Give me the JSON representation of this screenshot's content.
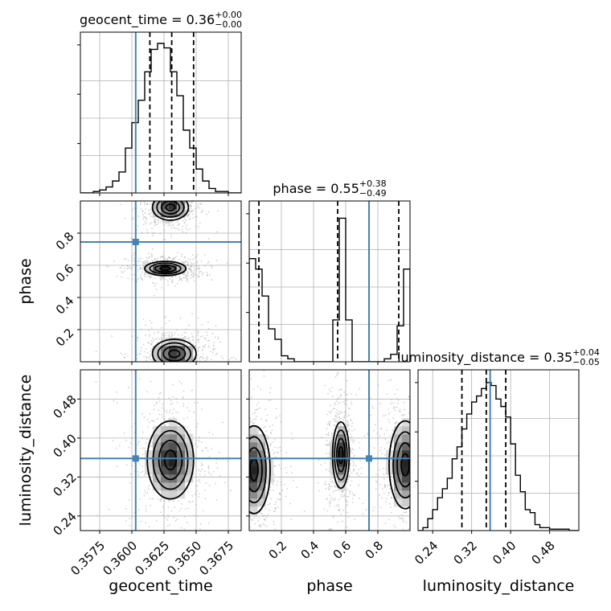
{
  "chart_data": {
    "type": "corner",
    "parameters": [
      "geocent_time",
      "phase",
      "luminosity_distance"
    ],
    "axis_labels": {
      "geocent_time": "geocent_time",
      "phase": "phase",
      "luminosity_distance": "luminosity_distance"
    },
    "ranges": {
      "geocent_time": [
        0.356,
        0.3685
      ],
      "phase": [
        0.0,
        1.0
      ],
      "luminosity_distance": [
        0.21,
        0.54
      ]
    },
    "ticks": {
      "geocent_time": {
        "values": [
          0.3575,
          0.36,
          0.3625,
          0.365,
          0.3675
        ],
        "labels": [
          "0.3575",
          "0.3600",
          "0.3625",
          "0.3650",
          "0.3675"
        ]
      },
      "phase": {
        "values": [
          0.2,
          0.4,
          0.6,
          0.8
        ],
        "labels": [
          "0.2",
          "0.4",
          "0.6",
          "0.8"
        ]
      },
      "luminosity_distance": {
        "values": [
          0.24,
          0.32,
          0.4,
          0.48
        ],
        "labels": [
          "0.24",
          "0.32",
          "0.40",
          "0.48"
        ]
      }
    },
    "truths": {
      "geocent_time": 0.3603,
      "phase": 0.745,
      "luminosity_distance": 0.358
    },
    "quantiles": {
      "geocent_time": [
        0.3614,
        0.3631,
        0.3648
      ],
      "phase": [
        0.06,
        0.55,
        0.93
      ],
      "luminosity_distance": [
        0.3,
        0.35,
        0.39
      ]
    },
    "titles": {
      "geocent_time": {
        "name": "geocent_time",
        "value": "0.36",
        "plus": "+0.00",
        "minus": "−0.00"
      },
      "phase": {
        "name": "phase",
        "value": "0.55",
        "plus": "+0.38",
        "minus": "−0.49"
      },
      "luminosity_distance": {
        "name": "luminosity_distance",
        "value": "0.35",
        "plus": "+0.04",
        "minus": "−0.05"
      }
    },
    "histograms": {
      "geocent_time": {
        "edges": [
          0.356,
          0.3565,
          0.357,
          0.3575,
          0.358,
          0.3585,
          0.359,
          0.3595,
          0.36,
          0.3605,
          0.361,
          0.3615,
          0.362,
          0.3625,
          0.363,
          0.3635,
          0.364,
          0.3645,
          0.365,
          0.3655,
          0.366,
          0.3665,
          0.367,
          0.3675,
          0.368,
          0.3685
        ],
        "counts": [
          0,
          0,
          0.01,
          0.02,
          0.04,
          0.08,
          0.14,
          0.3,
          0.47,
          0.62,
          0.81,
          0.96,
          1.0,
          0.97,
          0.81,
          0.65,
          0.42,
          0.3,
          0.16,
          0.08,
          0.03,
          0.01,
          0.01,
          0,
          0
        ]
      },
      "phase": {
        "edges": [
          0.0,
          0.04,
          0.08,
          0.12,
          0.16,
          0.2,
          0.24,
          0.28,
          0.32,
          0.36,
          0.4,
          0.44,
          0.48,
          0.52,
          0.56,
          0.6,
          0.64,
          0.68,
          0.72,
          0.76,
          0.8,
          0.84,
          0.88,
          0.92,
          0.96,
          1.0
        ],
        "counts": [
          0.69,
          0.62,
          0.44,
          0.22,
          0.15,
          0.04,
          0.02,
          0,
          0,
          0,
          0,
          0,
          0,
          0.28,
          0.96,
          0.28,
          0,
          0,
          0,
          0,
          0,
          0.02,
          0.05,
          0.24,
          0.62
        ]
      },
      "luminosity_distance": {
        "edges": [
          0.21,
          0.22,
          0.23,
          0.24,
          0.25,
          0.26,
          0.27,
          0.28,
          0.29,
          0.3,
          0.31,
          0.32,
          0.33,
          0.34,
          0.35,
          0.36,
          0.37,
          0.38,
          0.39,
          0.4,
          0.41,
          0.42,
          0.43,
          0.44,
          0.45,
          0.46,
          0.47,
          0.48,
          0.49,
          0.5,
          0.51,
          0.52,
          0.53,
          0.54
        ],
        "counts": [
          0,
          0.02,
          0.08,
          0.14,
          0.22,
          0.28,
          0.35,
          0.48,
          0.56,
          0.68,
          0.78,
          0.86,
          0.9,
          0.95,
          0.99,
          0.97,
          0.88,
          0.83,
          0.76,
          0.58,
          0.37,
          0.26,
          0.14,
          0.12,
          0.04,
          0.02,
          0.02,
          0.01,
          0.01,
          0.01,
          0.01,
          0,
          0
        ]
      }
    },
    "density_modes": [
      {
        "x": "geocent_time",
        "y": "phase",
        "modes": [
          {
            "cx": 0.363,
            "cy": 0.96,
            "sx": 0.0007,
            "sy": 0.04
          },
          {
            "cx": 0.3626,
            "cy": 0.58,
            "sx": 0.0008,
            "sy": 0.022
          },
          {
            "cx": 0.3633,
            "cy": 0.05,
            "sx": 0.00085,
            "sy": 0.045
          }
        ]
      },
      {
        "x": "geocent_time",
        "y": "luminosity_distance",
        "modes": [
          {
            "cx": 0.363,
            "cy": 0.355,
            "sx": 0.0009,
            "sy": 0.04
          }
        ]
      },
      {
        "x": "phase",
        "y": "luminosity_distance",
        "modes": [
          {
            "cx": 0.03,
            "cy": 0.335,
            "sx": 0.05,
            "sy": 0.045
          },
          {
            "cx": 0.57,
            "cy": 0.365,
            "sx": 0.026,
            "sy": 0.034
          },
          {
            "cx": 0.97,
            "cy": 0.345,
            "sx": 0.05,
            "sy": 0.045
          }
        ]
      }
    ],
    "grid": true
  }
}
